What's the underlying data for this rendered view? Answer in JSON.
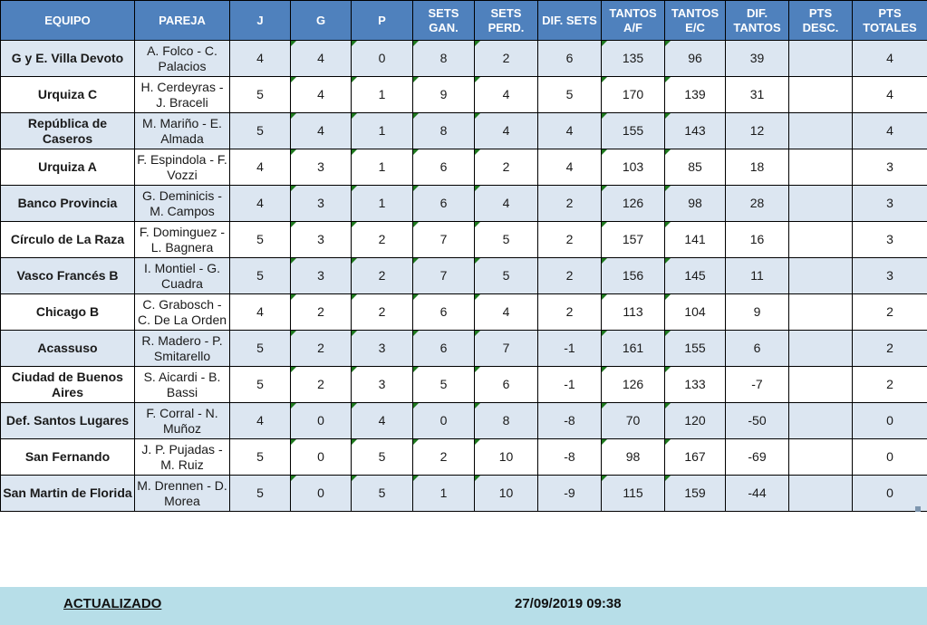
{
  "table": {
    "headers": [
      {
        "key": "equipo",
        "label": "EQUIPO"
      },
      {
        "key": "pareja",
        "label": "PAREJA"
      },
      {
        "key": "j",
        "label": "J"
      },
      {
        "key": "g",
        "label": "G"
      },
      {
        "key": "p",
        "label": "P"
      },
      {
        "key": "sets_gan",
        "label": "SETS GAN."
      },
      {
        "key": "sets_perd",
        "label": "SETS PERD."
      },
      {
        "key": "dif_sets",
        "label": "DIF. SETS"
      },
      {
        "key": "tantos_af",
        "label": "TANTOS A/F"
      },
      {
        "key": "tantos_ec",
        "label": "TANTOS E/C"
      },
      {
        "key": "dif_tantos",
        "label": "DIF. TANTOS"
      },
      {
        "key": "pts_desc",
        "label": "PTS DESC."
      },
      {
        "key": "pts_totales",
        "label": "PTS TOTALES"
      }
    ],
    "column_widths": {
      "equipo": 148,
      "pareja": 105,
      "j": 67,
      "g": 67,
      "p": 68,
      "sets_gan": 68,
      "sets_perd": 70,
      "dif_sets": 70,
      "tantos_af": 70,
      "tantos_ec": 67,
      "dif_tantos": 70,
      "pts_desc": 70,
      "pts_totales": 83
    },
    "error_indicator_columns": [
      "g",
      "p",
      "sets_gan",
      "sets_perd",
      "tantos_af",
      "tantos_ec"
    ],
    "rows": [
      {
        "equipo": "G y E. Villa Devoto",
        "pareja": "A. Folco - C. Palacios",
        "j": "4",
        "g": "4",
        "p": "0",
        "sets_gan": "8",
        "sets_perd": "2",
        "dif_sets": "6",
        "tantos_af": "135",
        "tantos_ec": "96",
        "dif_tantos": "39",
        "pts_desc": "",
        "pts_totales": "4"
      },
      {
        "equipo": "Urquiza C",
        "pareja": "H. Cerdeyras - J. Braceli",
        "j": "5",
        "g": "4",
        "p": "1",
        "sets_gan": "9",
        "sets_perd": "4",
        "dif_sets": "5",
        "tantos_af": "170",
        "tantos_ec": "139",
        "dif_tantos": "31",
        "pts_desc": "",
        "pts_totales": "4"
      },
      {
        "equipo": "República de Caseros",
        "pareja": "M. Mariño - E. Almada",
        "j": "5",
        "g": "4",
        "p": "1",
        "sets_gan": "8",
        "sets_perd": "4",
        "dif_sets": "4",
        "tantos_af": "155",
        "tantos_ec": "143",
        "dif_tantos": "12",
        "pts_desc": "",
        "pts_totales": "4"
      },
      {
        "equipo": "Urquiza A",
        "pareja": "F. Espindola - F. Vozzi",
        "j": "4",
        "g": "3",
        "p": "1",
        "sets_gan": "6",
        "sets_perd": "2",
        "dif_sets": "4",
        "tantos_af": "103",
        "tantos_ec": "85",
        "dif_tantos": "18",
        "pts_desc": "",
        "pts_totales": "3"
      },
      {
        "equipo": "Banco Provincia",
        "pareja": "G. Deminicis - M. Campos",
        "j": "4",
        "g": "3",
        "p": "1",
        "sets_gan": "6",
        "sets_perd": "4",
        "dif_sets": "2",
        "tantos_af": "126",
        "tantos_ec": "98",
        "dif_tantos": "28",
        "pts_desc": "",
        "pts_totales": "3"
      },
      {
        "equipo": "Círculo de La Raza",
        "pareja": "F. Dominguez - L. Bagnera",
        "j": "5",
        "g": "3",
        "p": "2",
        "sets_gan": "7",
        "sets_perd": "5",
        "dif_sets": "2",
        "tantos_af": "157",
        "tantos_ec": "141",
        "dif_tantos": "16",
        "pts_desc": "",
        "pts_totales": "3"
      },
      {
        "equipo": "Vasco Francés B",
        "pareja": "I. Montiel - G. Cuadra",
        "j": "5",
        "g": "3",
        "p": "2",
        "sets_gan": "7",
        "sets_perd": "5",
        "dif_sets": "2",
        "tantos_af": "156",
        "tantos_ec": "145",
        "dif_tantos": "11",
        "pts_desc": "",
        "pts_totales": "3"
      },
      {
        "equipo": "Chicago B",
        "pareja": "C. Grabosch - C. De La Orden",
        "j": "4",
        "g": "2",
        "p": "2",
        "sets_gan": "6",
        "sets_perd": "4",
        "dif_sets": "2",
        "tantos_af": "113",
        "tantos_ec": "104",
        "dif_tantos": "9",
        "pts_desc": "",
        "pts_totales": "2"
      },
      {
        "equipo": "Acassuso",
        "pareja": "R. Madero - P. Smitarello",
        "j": "5",
        "g": "2",
        "p": "3",
        "sets_gan": "6",
        "sets_perd": "7",
        "dif_sets": "-1",
        "tantos_af": "161",
        "tantos_ec": "155",
        "dif_tantos": "6",
        "pts_desc": "",
        "pts_totales": "2"
      },
      {
        "equipo": "Ciudad de Buenos Aires",
        "pareja": "S. Aicardi - B. Bassi",
        "j": "5",
        "g": "2",
        "p": "3",
        "sets_gan": "5",
        "sets_perd": "6",
        "dif_sets": "-1",
        "tantos_af": "126",
        "tantos_ec": "133",
        "dif_tantos": "-7",
        "pts_desc": "",
        "pts_totales": "2"
      },
      {
        "equipo": "Def. Santos Lugares",
        "pareja": "F. Corral - N. Muñoz",
        "j": "4",
        "g": "0",
        "p": "4",
        "sets_gan": "0",
        "sets_perd": "8",
        "dif_sets": "-8",
        "tantos_af": "70",
        "tantos_ec": "120",
        "dif_tantos": "-50",
        "pts_desc": "",
        "pts_totales": "0"
      },
      {
        "equipo": "San Fernando",
        "pareja": "J. P. Pujadas - M. Ruiz",
        "j": "5",
        "g": "0",
        "p": "5",
        "sets_gan": "2",
        "sets_perd": "10",
        "dif_sets": "-8",
        "tantos_af": "98",
        "tantos_ec": "167",
        "dif_tantos": "-69",
        "pts_desc": "",
        "pts_totales": "0"
      },
      {
        "equipo": "San Martin de Florida",
        "pareja": "M. Drennen - D. Morea",
        "j": "5",
        "g": "0",
        "p": "5",
        "sets_gan": "1",
        "sets_perd": "10",
        "dif_sets": "-9",
        "tantos_af": "115",
        "tantos_ec": "159",
        "dif_tantos": "-44",
        "pts_desc": "",
        "pts_totales": "0"
      }
    ]
  },
  "footer": {
    "label": "ACTUALIZADO",
    "timestamp": "27/09/2019 09:38"
  },
  "colors": {
    "header_bg": "#4F81BD",
    "header_text": "#FFFFFF",
    "row_alt_bg": "#DCE6F1",
    "row_bg": "#FFFFFF",
    "border": "#000000",
    "error_indicator": "#1E781E",
    "footer_bg": "#B7DEE8"
  }
}
